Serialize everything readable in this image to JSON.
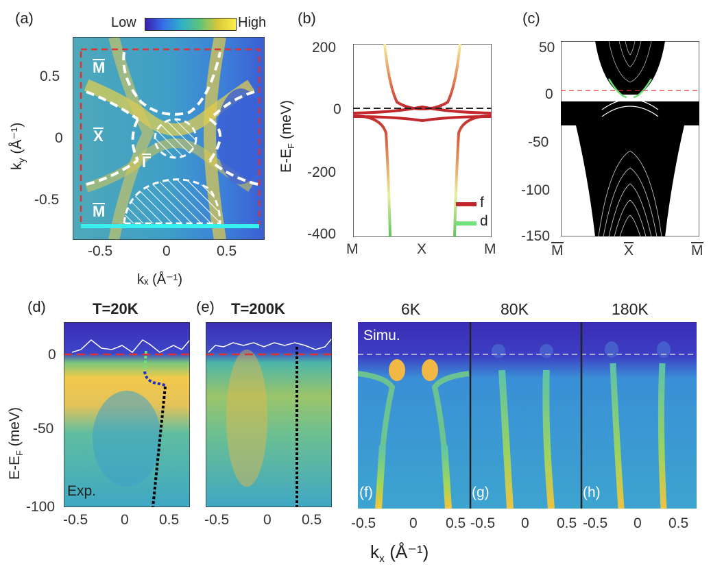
{
  "panels": {
    "a": {
      "tag": "(a)",
      "cb_low": "Low",
      "cb_high": "High",
      "xlabel": "kₓ (Å⁻¹)",
      "ylabel_main": "k",
      "ylabel_sub": "y",
      "ylabel_unit": "(Å⁻¹)",
      "xticks": [
        "-0.5",
        "0",
        "0.5"
      ],
      "yticks": [
        "0.5",
        "0",
        "-0.5"
      ],
      "pt_M": "M",
      "pt_X": "X",
      "pt_G": "Γ"
    },
    "b": {
      "tag": "(b)",
      "ylabel": "E-E",
      "ylabel_sub": "F",
      "ylabel_unit": " (meV)",
      "yticks": [
        "200",
        "0",
        "-200",
        "-400"
      ],
      "xticks": [
        "M",
        "X",
        "M"
      ],
      "legend_f": "f",
      "legend_d": "d"
    },
    "c": {
      "tag": "(c)",
      "yticks": [
        "50",
        "0",
        "-50",
        "-100",
        "-150"
      ],
      "xticks": [
        "M",
        "X",
        "M"
      ]
    },
    "d": {
      "tag": "(d)",
      "title": "T=20K",
      "label": "Exp.",
      "yticks": [
        "0",
        "-50",
        "-100"
      ],
      "xticks": [
        "-0.5",
        "0",
        "0.5"
      ],
      "ylabel": "E-E",
      "ylabel_sub": "F",
      "ylabel_unit": "(meV)"
    },
    "e": {
      "tag": "(e)",
      "title": "T=200K",
      "xticks": [
        "-0.5",
        "0",
        "0.5"
      ]
    },
    "f": {
      "tag": "(f)",
      "title": "6K",
      "label": "Simu.",
      "xticks": [
        "-0.5",
        "0",
        "0.5"
      ]
    },
    "g": {
      "tag": "(g)",
      "title": "80K",
      "xticks": [
        "-0.5",
        "0",
        "0.5"
      ]
    },
    "h": {
      "tag": "(h)",
      "title": "180K",
      "xticks": [
        "-0.5",
        "0",
        "0.5"
      ]
    },
    "bottom_xlabel_main": "k",
    "bottom_xlabel_sub": "x",
    "bottom_xlabel_unit": " (Å⁻¹)"
  },
  "colors": {
    "cmap_low": "#3b2db5",
    "cmap_mid": "#2aa7a0",
    "cmap_high": "#f7e33a",
    "f_band": "#c2272d",
    "d_band": "#6fe07a",
    "fermi_dash": "#e03030"
  },
  "chart_data": [
    {
      "type": "heatmap",
      "title": "",
      "xlabel": "kx (Å-1)",
      "ylabel": "ky (Å-1)",
      "xlim": [
        -0.8,
        0.8
      ],
      "ylim": [
        -0.8,
        0.8
      ]
    },
    {
      "type": "line",
      "title": "",
      "xlabel": "",
      "ylabel": "E-EF (meV)",
      "ylim": [
        -400,
        200
      ],
      "categories": [
        "M",
        "X",
        "M"
      ],
      "series": [
        {
          "name": "f"
        },
        {
          "name": "d"
        }
      ]
    },
    {
      "type": "line",
      "title": "",
      "ylabel": "",
      "ylim": [
        -150,
        50
      ],
      "categories": [
        "M",
        "X",
        "M"
      ]
    },
    {
      "type": "heatmap",
      "title": "T=20K",
      "xlabel": "kx (Å-1)",
      "ylabel": "E-EF (meV)",
      "xlim": [
        -0.7,
        0.7
      ],
      "ylim": [
        -100,
        20
      ]
    },
    {
      "type": "heatmap",
      "title": "T=200K",
      "xlim": [
        -0.7,
        0.7
      ],
      "ylim": [
        -100,
        20
      ]
    },
    {
      "type": "heatmap",
      "title": "6K",
      "xlim": [
        -0.7,
        0.7
      ],
      "ylim": [
        -100,
        20
      ]
    },
    {
      "type": "heatmap",
      "title": "80K",
      "xlim": [
        -0.7,
        0.7
      ],
      "ylim": [
        -100,
        20
      ]
    },
    {
      "type": "heatmap",
      "title": "180K",
      "xlim": [
        -0.7,
        0.7
      ],
      "ylim": [
        -100,
        20
      ]
    }
  ]
}
